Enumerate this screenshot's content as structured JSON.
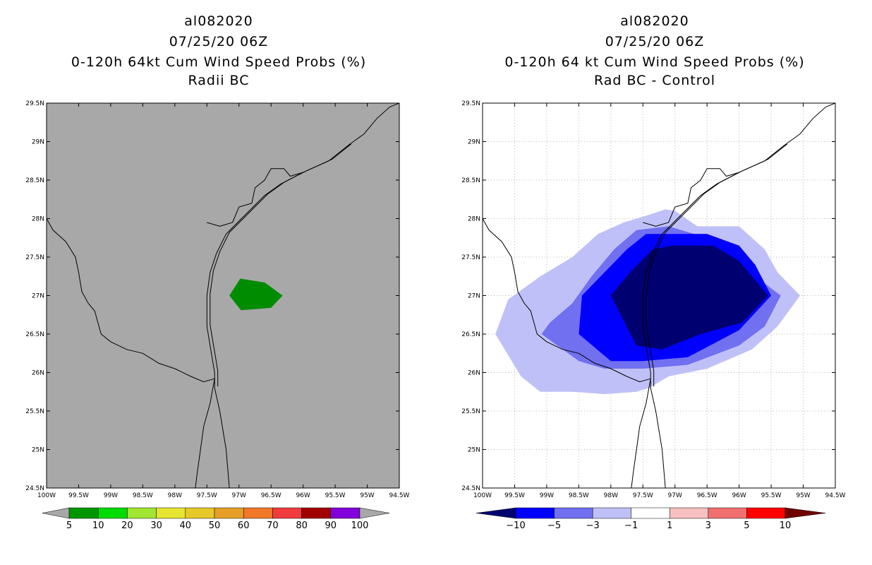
{
  "chart_data": [
    {
      "type": "map-contour",
      "panel": "left",
      "title_lines": [
        "al082020",
        "07/25/20 06Z",
        "0-120h 64kt Cum Wind Speed Probs (%)",
        "Radii BC"
      ],
      "xlim": [
        -100,
        -94.5
      ],
      "ylim": [
        24.5,
        29.5
      ],
      "x_ticks": [
        -100,
        -99.5,
        -99,
        -98.5,
        -98,
        -97.5,
        -97,
        -96.5,
        -96,
        -95.5,
        -95,
        -94.5
      ],
      "x_tick_labels": [
        "100W",
        "99.5W",
        "99W",
        "98.5W",
        "98W",
        "97.5W",
        "97W",
        "96.5W",
        "96W",
        "95.5W",
        "95W",
        "94.5W"
      ],
      "y_ticks": [
        24.5,
        25,
        25.5,
        26,
        26.5,
        27,
        27.5,
        28,
        28.5,
        29,
        29.5
      ],
      "y_tick_labels": [
        "24.5N",
        "25N",
        "25.5N",
        "26N",
        "26.5N",
        "27N",
        "27.5N",
        "28N",
        "28.5N",
        "29N",
        "29.5N"
      ],
      "grid": false,
      "background_color": "#a8a8a8",
      "contours": [
        {
          "level": "5-10",
          "color": "#008c00",
          "points": [
            [
              -97.15,
              27.0
            ],
            [
              -96.98,
              27.22
            ],
            [
              -96.6,
              27.17
            ],
            [
              -96.32,
              27.0
            ],
            [
              -96.5,
              26.84
            ],
            [
              -96.97,
              26.81
            ]
          ]
        }
      ],
      "colorbar": {
        "labels": [
          "5",
          "10",
          "20",
          "30",
          "40",
          "50",
          "60",
          "70",
          "80",
          "90",
          "100"
        ],
        "colors": [
          "#009600",
          "#00dc00",
          "#a0e632",
          "#e6e632",
          "#e6c828",
          "#e6a028",
          "#f07828",
          "#f03c3c",
          "#a00000",
          "#8200dc"
        ],
        "end_color": "#a8a8a8"
      }
    },
    {
      "type": "map-contour",
      "panel": "right",
      "title_lines": [
        "al082020",
        "07/25/20 06Z",
        "0-120h 64 kt Cum Wind Speed Probs (%)",
        "Rad BC - Control"
      ],
      "xlim": [
        -100,
        -94.5
      ],
      "ylim": [
        24.5,
        29.5
      ],
      "x_ticks": [
        -100,
        -99.5,
        -99,
        -98.5,
        -98,
        -97.5,
        -97,
        -96.5,
        -96,
        -95.5,
        -95,
        -94.5
      ],
      "x_tick_labels": [
        "100W",
        "99.5W",
        "99W",
        "98.5W",
        "98W",
        "97.5W",
        "97W",
        "96.5W",
        "96W",
        "95.5W",
        "95W",
        "94.5W"
      ],
      "y_ticks": [
        24.5,
        25,
        25.5,
        26,
        26.5,
        27,
        27.5,
        28,
        28.5,
        29,
        29.5
      ],
      "y_tick_labels": [
        "24.5N",
        "25N",
        "25.5N",
        "26N",
        "26.5N",
        "27N",
        "27.5N",
        "28N",
        "28.5N",
        "29N",
        "29.5N"
      ],
      "grid": true,
      "background_color": "#ffffff",
      "contours": [
        {
          "level": "-3 to -1",
          "color": "#c0c0f8",
          "points": [
            [
              -99.8,
              26.5
            ],
            [
              -99.6,
              26.95
            ],
            [
              -99.1,
              27.25
            ],
            [
              -98.6,
              27.5
            ],
            [
              -98.2,
              27.8
            ],
            [
              -97.8,
              27.95
            ],
            [
              -97.4,
              28.05
            ],
            [
              -97.15,
              28.12
            ],
            [
              -97.0,
              28.1
            ],
            [
              -96.65,
              27.9
            ],
            [
              -96.0,
              27.9
            ],
            [
              -95.6,
              27.6
            ],
            [
              -95.4,
              27.3
            ],
            [
              -95.05,
              27.0
            ],
            [
              -95.4,
              26.6
            ],
            [
              -95.8,
              26.3
            ],
            [
              -96.5,
              26.05
            ],
            [
              -97.1,
              25.95
            ],
            [
              -97.4,
              25.8
            ],
            [
              -97.6,
              25.75
            ],
            [
              -98.1,
              25.72
            ],
            [
              -98.6,
              25.75
            ],
            [
              -99.1,
              25.75
            ],
            [
              -99.4,
              25.95
            ],
            [
              -99.8,
              26.5
            ]
          ]
        },
        {
          "level": "-5 to -3",
          "color": "#7070f0",
          "points": [
            [
              -99.08,
              26.5
            ],
            [
              -98.95,
              26.65
            ],
            [
              -98.6,
              26.9
            ],
            [
              -98.3,
              27.25
            ],
            [
              -97.95,
              27.6
            ],
            [
              -97.6,
              27.85
            ],
            [
              -97.1,
              27.9
            ],
            [
              -96.5,
              27.75
            ],
            [
              -96.05,
              27.55
            ],
            [
              -95.75,
              27.25
            ],
            [
              -95.35,
              27.0
            ],
            [
              -95.6,
              26.6
            ],
            [
              -96.0,
              26.35
            ],
            [
              -96.8,
              26.1
            ],
            [
              -97.5,
              26.05
            ],
            [
              -98.1,
              26.05
            ],
            [
              -98.5,
              26.15
            ],
            [
              -99.08,
              26.5
            ]
          ]
        },
        {
          "level": "-10 to -5",
          "color": "#0000ff",
          "points": [
            [
              -98.5,
              26.5
            ],
            [
              -98.45,
              27.0
            ],
            [
              -98.1,
              27.3
            ],
            [
              -97.75,
              27.6
            ],
            [
              -97.45,
              27.8
            ],
            [
              -96.5,
              27.8
            ],
            [
              -96.0,
              27.65
            ],
            [
              -95.75,
              27.4
            ],
            [
              -95.5,
              27.0
            ],
            [
              -96.0,
              26.55
            ],
            [
              -96.8,
              26.2
            ],
            [
              -97.5,
              26.15
            ],
            [
              -98.0,
              26.15
            ],
            [
              -98.5,
              26.5
            ]
          ]
        },
        {
          "level": "< -10",
          "color": "#000070",
          "points": [
            [
              -98.0,
              27.0
            ],
            [
              -97.7,
              27.3
            ],
            [
              -97.35,
              27.6
            ],
            [
              -97.05,
              27.65
            ],
            [
              -96.4,
              27.65
            ],
            [
              -96.0,
              27.45
            ],
            [
              -95.55,
              27.0
            ],
            [
              -95.95,
              26.65
            ],
            [
              -96.6,
              26.5
            ],
            [
              -97.2,
              26.3
            ],
            [
              -97.6,
              26.35
            ],
            [
              -98.0,
              27.0
            ]
          ]
        }
      ],
      "colorbar": {
        "labels": [
          "−10",
          "−5",
          "−3",
          "−1",
          "1",
          "3",
          "5",
          "10"
        ],
        "colors": [
          "#0000ff",
          "#7070f0",
          "#c0c0f8",
          "#ffffff",
          "#f8c0c0",
          "#f07070",
          "#ff0000"
        ],
        "start_color": "#000070",
        "end_color": "#700000"
      }
    }
  ]
}
